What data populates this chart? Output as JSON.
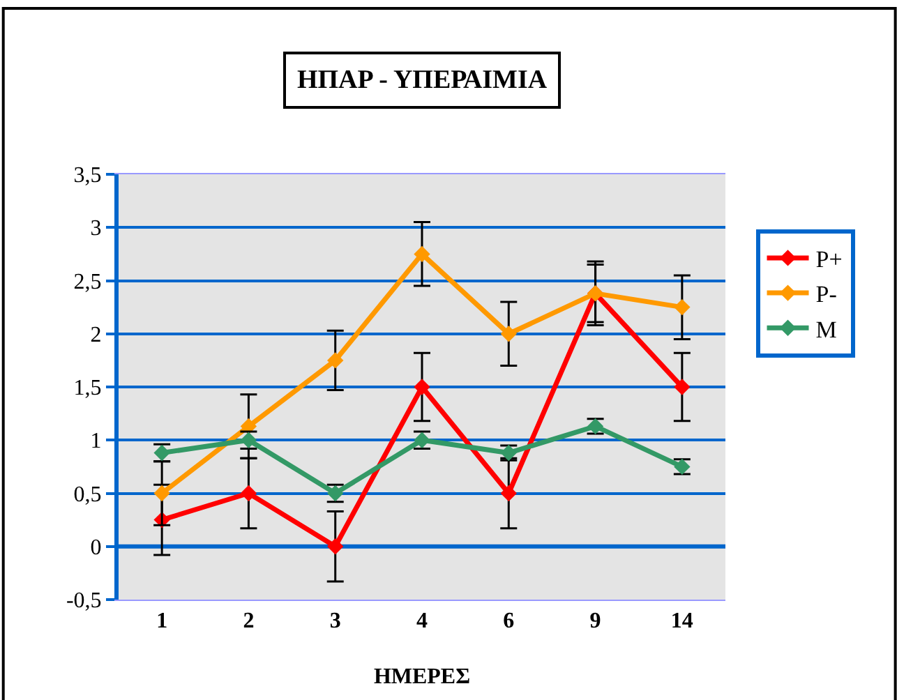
{
  "chart_data": {
    "type": "line",
    "title": "ΗΠΑΡ - ΥΠΕΡΑΙΜΙΑ",
    "xlabel": "ΗΜΕΡΕΣ",
    "categories": [
      "1",
      "2",
      "3",
      "4",
      "6",
      "9",
      "14"
    ],
    "series": [
      {
        "name": "P+",
        "color": "#ff0000",
        "values": [
          0.25,
          0.5,
          0,
          1.5,
          0.5,
          2.38,
          1.5
        ],
        "errors": [
          0.33,
          0.33,
          0.33,
          0.32,
          0.33,
          0.27,
          0.32
        ]
      },
      {
        "name": "P-",
        "color": "#ff9900",
        "values": [
          0.5,
          1.13,
          1.75,
          2.75,
          2.0,
          2.38,
          2.25
        ],
        "errors": [
          0.3,
          0.3,
          0.28,
          0.3,
          0.3,
          0.3,
          0.3
        ]
      },
      {
        "name": "M",
        "color": "#339966",
        "values": [
          0.88,
          1.0,
          0.5,
          1.0,
          0.88,
          1.13,
          0.75
        ],
        "errors": [
          0.08,
          0.08,
          0.08,
          0.08,
          0.07,
          0.07,
          0.07
        ]
      }
    ],
    "ylim": [
      -0.5,
      3.5
    ],
    "yticks": [
      {
        "value": -0.5,
        "label": "-0,5"
      },
      0,
      {
        "value": 0.5,
        "label": "0,5"
      },
      1,
      {
        "value": 1.5,
        "label": "1,5"
      },
      2,
      {
        "value": 2.5,
        "label": "2,5"
      },
      3,
      {
        "value": 3.5,
        "label": "3,5"
      }
    ],
    "ref_lines": [
      {
        "axis": "y",
        "value": 0,
        "color": "#0066cc"
      }
    ],
    "grid": "y",
    "legend": "right",
    "marker": "diamond",
    "line_style": "solid"
  }
}
